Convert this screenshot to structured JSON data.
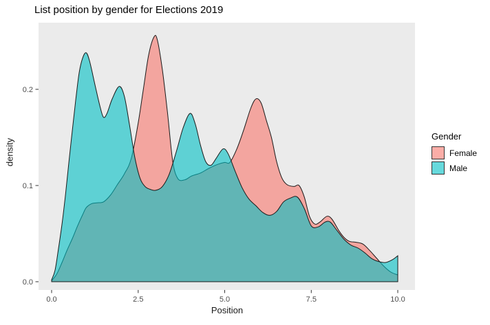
{
  "title": "List position by gender for Elections 2019",
  "colors": {
    "page_background": "#ffffff",
    "panel_background": "#ebebeb",
    "curve_outline": "#1a1a1a",
    "tick_mark": "#333333",
    "tick_label": "#4d4d4d",
    "female_fill": "#F8766D",
    "male_fill": "#00BFC4"
  },
  "legend": {
    "title": "Gender",
    "entries": [
      {
        "label": "Female",
        "color": "#F8766D"
      },
      {
        "label": "Male",
        "color": "#00BFC4"
      }
    ]
  },
  "chart_data": {
    "type": "area",
    "subtype": "density",
    "title": "List position by gender for Elections 2019",
    "xlabel": "Position",
    "ylabel": "density",
    "xlim": [
      -0.38,
      10.5
    ],
    "ylim": [
      0,
      0.269
    ],
    "x_ticks": [
      0.0,
      2.5,
      5.0,
      7.5,
      10.0
    ],
    "x_tick_labels": [
      "0.0",
      "2.5",
      "5.0",
      "7.5",
      "10.0"
    ],
    "y_ticks": [
      0.0,
      0.1,
      0.2
    ],
    "y_tick_labels": [
      "0.0",
      "0.1",
      "0.2"
    ],
    "grid": "off",
    "legend_position": "right",
    "fill_alpha": 0.6,
    "draw_order": [
      "Female",
      "Male"
    ],
    "series": [
      {
        "name": "Female",
        "color": "#F8766D",
        "points": [
          [
            0,
            0.001
          ],
          [
            0.15,
            0.008
          ],
          [
            0.3,
            0.02
          ],
          [
            0.45,
            0.033
          ],
          [
            0.6,
            0.045
          ],
          [
            0.75,
            0.058
          ],
          [
            0.9,
            0.07
          ],
          [
            1.0,
            0.077
          ],
          [
            1.15,
            0.081
          ],
          [
            1.3,
            0.082
          ],
          [
            1.5,
            0.083
          ],
          [
            1.7,
            0.09
          ],
          [
            1.9,
            0.101
          ],
          [
            2.1,
            0.112
          ],
          [
            2.3,
            0.128
          ],
          [
            2.5,
            0.165
          ],
          [
            2.65,
            0.2
          ],
          [
            2.8,
            0.235
          ],
          [
            2.95,
            0.254
          ],
          [
            3.05,
            0.252
          ],
          [
            3.2,
            0.22
          ],
          [
            3.35,
            0.175
          ],
          [
            3.5,
            0.125
          ],
          [
            3.65,
            0.107
          ],
          [
            3.85,
            0.106
          ],
          [
            4.05,
            0.11
          ],
          [
            4.3,
            0.113
          ],
          [
            4.55,
            0.118
          ],
          [
            4.8,
            0.122
          ],
          [
            5.0,
            0.124
          ],
          [
            5.15,
            0.124
          ],
          [
            5.35,
            0.138
          ],
          [
            5.55,
            0.158
          ],
          [
            5.75,
            0.18
          ],
          [
            5.9,
            0.19
          ],
          [
            6.05,
            0.186
          ],
          [
            6.2,
            0.168
          ],
          [
            6.35,
            0.15
          ],
          [
            6.5,
            0.125
          ],
          [
            6.65,
            0.108
          ],
          [
            6.8,
            0.101
          ],
          [
            7.0,
            0.099
          ],
          [
            7.15,
            0.1
          ],
          [
            7.3,
            0.088
          ],
          [
            7.45,
            0.068
          ],
          [
            7.6,
            0.06
          ],
          [
            7.75,
            0.062
          ],
          [
            7.95,
            0.068
          ],
          [
            8.1,
            0.065
          ],
          [
            8.3,
            0.053
          ],
          [
            8.45,
            0.046
          ],
          [
            8.6,
            0.042
          ],
          [
            8.8,
            0.041
          ],
          [
            9.0,
            0.039
          ],
          [
            9.2,
            0.032
          ],
          [
            9.4,
            0.024
          ],
          [
            9.6,
            0.016
          ],
          [
            9.8,
            0.01
          ],
          [
            10,
            0.007
          ]
        ]
      },
      {
        "name": "Male",
        "color": "#00BFC4",
        "points": [
          [
            0,
            0.002
          ],
          [
            0.1,
            0.012
          ],
          [
            0.2,
            0.035
          ],
          [
            0.3,
            0.06
          ],
          [
            0.4,
            0.09
          ],
          [
            0.5,
            0.125
          ],
          [
            0.6,
            0.158
          ],
          [
            0.7,
            0.19
          ],
          [
            0.8,
            0.218
          ],
          [
            0.9,
            0.233
          ],
          [
            1.0,
            0.238
          ],
          [
            1.1,
            0.229
          ],
          [
            1.25,
            0.205
          ],
          [
            1.4,
            0.182
          ],
          [
            1.5,
            0.171
          ],
          [
            1.6,
            0.175
          ],
          [
            1.75,
            0.19
          ],
          [
            1.95,
            0.203
          ],
          [
            2.1,
            0.193
          ],
          [
            2.25,
            0.163
          ],
          [
            2.4,
            0.13
          ],
          [
            2.55,
            0.108
          ],
          [
            2.7,
            0.099
          ],
          [
            2.85,
            0.096
          ],
          [
            3.0,
            0.095
          ],
          [
            3.2,
            0.099
          ],
          [
            3.4,
            0.112
          ],
          [
            3.6,
            0.135
          ],
          [
            3.8,
            0.16
          ],
          [
            4.0,
            0.175
          ],
          [
            4.15,
            0.164
          ],
          [
            4.3,
            0.142
          ],
          [
            4.45,
            0.125
          ],
          [
            4.6,
            0.121
          ],
          [
            4.75,
            0.128
          ],
          [
            4.95,
            0.138
          ],
          [
            5.1,
            0.133
          ],
          [
            5.3,
            0.115
          ],
          [
            5.5,
            0.098
          ],
          [
            5.7,
            0.086
          ],
          [
            5.9,
            0.079
          ],
          [
            6.1,
            0.072
          ],
          [
            6.3,
            0.069
          ],
          [
            6.5,
            0.073
          ],
          [
            6.7,
            0.083
          ],
          [
            6.9,
            0.087
          ],
          [
            7.1,
            0.088
          ],
          [
            7.3,
            0.076
          ],
          [
            7.5,
            0.058
          ],
          [
            7.7,
            0.057
          ],
          [
            7.9,
            0.062
          ],
          [
            8.05,
            0.062
          ],
          [
            8.25,
            0.053
          ],
          [
            8.45,
            0.044
          ],
          [
            8.65,
            0.038
          ],
          [
            8.85,
            0.035
          ],
          [
            9.05,
            0.03
          ],
          [
            9.25,
            0.024
          ],
          [
            9.45,
            0.021
          ],
          [
            9.65,
            0.02
          ],
          [
            9.85,
            0.023
          ],
          [
            10,
            0.027
          ]
        ]
      }
    ]
  }
}
